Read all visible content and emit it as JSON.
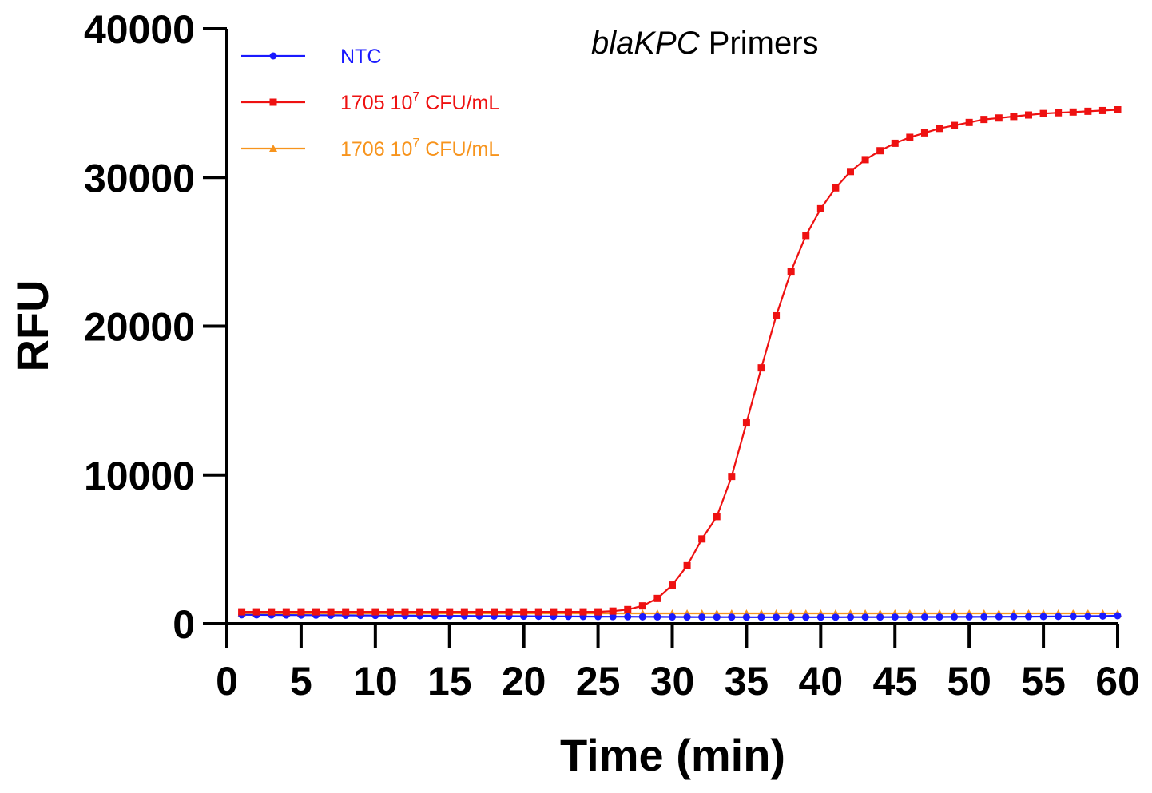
{
  "chart_data": {
    "type": "line",
    "title": {
      "italic": "blaKPC",
      "rest": " Primers"
    },
    "xlabel": "Time (min)",
    "ylabel": "RFU",
    "xlim": [
      0,
      60
    ],
    "ylim": [
      0,
      40000
    ],
    "xticks": [
      0,
      5,
      10,
      15,
      20,
      25,
      30,
      35,
      40,
      45,
      50,
      55,
      60
    ],
    "yticks": [
      0,
      10000,
      20000,
      30000,
      40000
    ],
    "grid": false,
    "legend_position": "top-left",
    "x": [
      1,
      2,
      3,
      4,
      5,
      6,
      7,
      8,
      9,
      10,
      11,
      12,
      13,
      14,
      15,
      16,
      17,
      18,
      19,
      20,
      21,
      22,
      23,
      24,
      25,
      26,
      27,
      28,
      29,
      30,
      31,
      32,
      33,
      34,
      35,
      36,
      37,
      38,
      39,
      40,
      41,
      42,
      43,
      44,
      45,
      46,
      47,
      48,
      49,
      50,
      51,
      52,
      53,
      54,
      55,
      56,
      57,
      58,
      59,
      60
    ],
    "series": [
      {
        "name": "NTC",
        "legend": {
          "base": "NTC",
          "sup": "",
          "rest": ""
        },
        "color": "#1a1aff",
        "marker": "circle",
        "values": [
          600,
          595,
          590,
          585,
          580,
          575,
          570,
          565,
          560,
          555,
          550,
          545,
          540,
          535,
          530,
          525,
          520,
          515,
          510,
          505,
          500,
          495,
          490,
          485,
          480,
          475,
          470,
          465,
          460,
          455,
          450,
          448,
          446,
          444,
          442,
          440,
          440,
          440,
          440,
          440,
          442,
          444,
          446,
          448,
          450,
          452,
          455,
          458,
          460,
          463,
          466,
          470,
          475,
          480,
          485,
          490,
          500,
          510,
          520,
          540
        ]
      },
      {
        "name": "1705 10^7 CFU/mL",
        "legend": {
          "base": "1705 10",
          "sup": "7",
          "rest": " CFU/mL"
        },
        "color": "#ee1111",
        "marker": "square",
        "values": [
          800,
          800,
          800,
          800,
          800,
          800,
          800,
          800,
          800,
          800,
          800,
          800,
          800,
          800,
          800,
          800,
          800,
          800,
          800,
          800,
          800,
          800,
          800,
          800,
          800,
          850,
          950,
          1200,
          1700,
          2600,
          3900,
          5700,
          7200,
          9900,
          13500,
          17200,
          20700,
          23700,
          26100,
          27900,
          29300,
          30400,
          31200,
          31800,
          32300,
          32700,
          33000,
          33300,
          33500,
          33700,
          33900,
          34000,
          34100,
          34200,
          34300,
          34350,
          34400,
          34450,
          34500,
          34550
        ]
      },
      {
        "name": "1706 10^7 CFU/mL",
        "legend": {
          "base": "1706 10",
          "sup": "7",
          "rest": " CFU/mL"
        },
        "color": "#f7941d",
        "marker": "triangle",
        "values": [
          700,
          700,
          700,
          700,
          700,
          700,
          700,
          700,
          700,
          700,
          700,
          700,
          700,
          700,
          700,
          700,
          700,
          700,
          700,
          700,
          700,
          700,
          700,
          700,
          700,
          700,
          700,
          700,
          700,
          700,
          700,
          700,
          700,
          700,
          700,
          700,
          700,
          700,
          700,
          700,
          700,
          700,
          700,
          700,
          700,
          700,
          700,
          700,
          700,
          700,
          700,
          700,
          700,
          700,
          700,
          700,
          700,
          700,
          700,
          700
        ]
      }
    ]
  }
}
